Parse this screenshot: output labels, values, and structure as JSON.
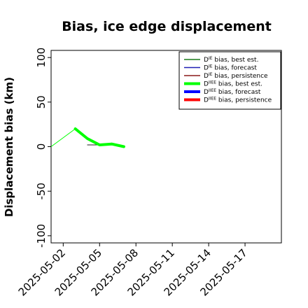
{
  "chart_data": {
    "type": "line",
    "title": "Bias, ice edge displacement",
    "xlabel": "",
    "ylabel": "Displacement bias (km)",
    "xlim": [
      "2025-05-01",
      "2025-05-20"
    ],
    "ylim": [
      -108,
      108
    ],
    "x_ticks": [
      "2025-05-02",
      "2025-05-05",
      "2025-05-08",
      "2025-05-11",
      "2025-05-14",
      "2025-05-17"
    ],
    "highlight_tick": "2025-05-08",
    "highlight_color": "#228B22",
    "y_ticks": [
      -100,
      -50,
      0,
      50,
      100
    ],
    "grid": false,
    "legend_position": "top-right",
    "legend": [
      {
        "base": "D",
        "sup": "IE",
        "suffix": " bias, best est.",
        "color": "#1a7a1a",
        "width": 1.5
      },
      {
        "base": "D",
        "sup": "IE",
        "suffix": " bias, forecast",
        "color": "#1f1fb4",
        "width": 1.5
      },
      {
        "base": "D",
        "sup": "IE",
        "suffix": " bias, persistence",
        "color": "#8b1a1a",
        "width": 1.5
      },
      {
        "base": "D",
        "sup": "IIEE",
        "suffix": " bias, best est.",
        "color": "#00ff00",
        "width": 4
      },
      {
        "base": "D",
        "sup": "IIEE",
        "suffix": " bias, forecast",
        "color": "#0000ff",
        "width": 4
      },
      {
        "base": "D",
        "sup": "IIEE",
        "suffix": " bias, persistence",
        "color": "#ff0000",
        "width": 4
      }
    ],
    "series": [
      {
        "color": "#00ff00",
        "width": 1,
        "x": [
          "2025-05-01",
          "2025-05-03"
        ],
        "y": [
          0,
          20
        ]
      },
      {
        "color": "#1f1f1f",
        "width": 1,
        "x": [
          "2025-05-04",
          "2025-05-05",
          "2025-05-06",
          "2025-05-07"
        ],
        "y": [
          2,
          2,
          4,
          1
        ]
      },
      {
        "color": "#00ff00",
        "width": 4,
        "x": [
          "2025-05-03",
          "2025-05-04",
          "2025-05-05",
          "2025-05-06",
          "2025-05-07"
        ],
        "y": [
          20,
          9,
          2,
          3,
          0
        ]
      }
    ]
  }
}
